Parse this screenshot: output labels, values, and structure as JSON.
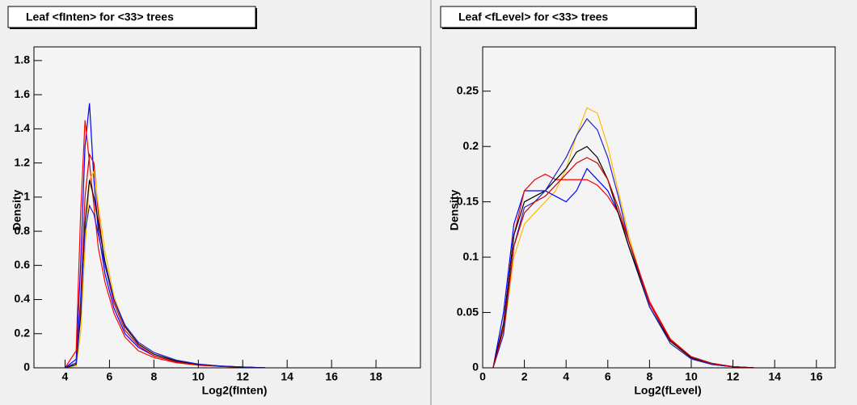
{
  "chart_data": [
    {
      "type": "line",
      "title": "Leaf <fInten> for <33> trees",
      "x_label": "Log2(fInten)",
      "y_label": "Density",
      "xlim": [
        2.6,
        20
      ],
      "ylim": [
        0,
        1.88
      ],
      "xticks": [
        4,
        6,
        8,
        10,
        12,
        14,
        16,
        18
      ],
      "yticks": [
        0,
        0.2,
        0.4,
        0.6,
        0.8,
        1,
        1.2,
        1.4,
        1.6,
        1.8
      ],
      "x": [
        4,
        4.5,
        4.7,
        4.9,
        5.1,
        5.3,
        5.5,
        5.8,
        6.2,
        6.7,
        7.3,
        8,
        9,
        10,
        11,
        12,
        13
      ],
      "series": [
        {
          "color": "#0000ff",
          "values": [
            0,
            0.05,
            0.6,
            1.3,
            1.55,
            1.1,
            0.8,
            0.55,
            0.35,
            0.2,
            0.12,
            0.07,
            0.035,
            0.018,
            0.01,
            0.005,
            0
          ]
        },
        {
          "color": "#ff0000",
          "values": [
            0,
            0.1,
            0.9,
            1.45,
            1.2,
            0.95,
            0.7,
            0.5,
            0.32,
            0.18,
            0.1,
            0.06,
            0.03,
            0.015,
            0.008,
            0.004,
            0
          ]
        },
        {
          "color": "#dd0000",
          "values": [
            0,
            0.02,
            0.4,
            1.0,
            1.25,
            1.2,
            0.9,
            0.6,
            0.38,
            0.22,
            0.13,
            0.07,
            0.035,
            0.018,
            0.009,
            0.004,
            0
          ]
        },
        {
          "color": "#ffbb00",
          "values": [
            0,
            0.01,
            0.2,
            0.7,
            1.1,
            1.15,
            0.95,
            0.68,
            0.42,
            0.24,
            0.14,
            0.08,
            0.04,
            0.02,
            0.01,
            0.005,
            0
          ]
        },
        {
          "color": "#000000",
          "values": [
            0,
            0.02,
            0.3,
            0.85,
            1.1,
            1.0,
            0.85,
            0.62,
            0.4,
            0.24,
            0.14,
            0.08,
            0.04,
            0.02,
            0.01,
            0.004,
            0
          ]
        },
        {
          "color": "#2222cc",
          "values": [
            0,
            0.03,
            0.35,
            0.8,
            0.95,
            0.9,
            0.78,
            0.6,
            0.4,
            0.25,
            0.15,
            0.09,
            0.045,
            0.022,
            0.011,
            0.005,
            0
          ]
        }
      ]
    },
    {
      "type": "line",
      "title": "Leaf <fLevel> for <33> trees",
      "x_label": "Log2(fLevel)",
      "y_label": "Density",
      "xlim": [
        0,
        16.9
      ],
      "ylim": [
        0,
        0.29
      ],
      "xticks": [
        0,
        2,
        4,
        6,
        8,
        10,
        12,
        14,
        16
      ],
      "yticks": [
        0,
        0.05,
        0.1,
        0.15,
        0.2,
        0.25
      ],
      "x": [
        0.5,
        1,
        1.5,
        2,
        2.5,
        3,
        3.5,
        4,
        4.5,
        5,
        5.5,
        6,
        6.5,
        7,
        8,
        9,
        10,
        11,
        12,
        13
      ],
      "series": [
        {
          "color": "#ffbb00",
          "values": [
            0,
            0.03,
            0.1,
            0.13,
            0.14,
            0.15,
            0.16,
            0.18,
            0.21,
            0.235,
            0.23,
            0.2,
            0.16,
            0.12,
            0.055,
            0.022,
            0.008,
            0.003,
            0.001,
            0
          ]
        },
        {
          "color": "#0000ff",
          "values": [
            0,
            0.05,
            0.13,
            0.16,
            0.16,
            0.16,
            0.155,
            0.15,
            0.16,
            0.18,
            0.17,
            0.16,
            0.14,
            0.11,
            0.058,
            0.025,
            0.01,
            0.004,
            0.001,
            0
          ]
        },
        {
          "color": "#ff0000",
          "values": [
            0,
            0.04,
            0.12,
            0.16,
            0.17,
            0.175,
            0.17,
            0.17,
            0.17,
            0.17,
            0.165,
            0.155,
            0.14,
            0.115,
            0.06,
            0.026,
            0.01,
            0.004,
            0.001,
            0
          ]
        },
        {
          "color": "#000000",
          "values": [
            0,
            0.04,
            0.12,
            0.15,
            0.155,
            0.16,
            0.17,
            0.18,
            0.195,
            0.2,
            0.19,
            0.17,
            0.14,
            0.11,
            0.055,
            0.024,
            0.009,
            0.003,
            0.001,
            0
          ]
        },
        {
          "color": "#2222cc",
          "values": [
            0,
            0.03,
            0.11,
            0.145,
            0.15,
            0.16,
            0.175,
            0.19,
            0.21,
            0.225,
            0.215,
            0.19,
            0.155,
            0.115,
            0.055,
            0.022,
            0.008,
            0.003,
            0.001,
            0
          ]
        },
        {
          "color": "#cc0000",
          "values": [
            0,
            0.035,
            0.11,
            0.14,
            0.15,
            0.155,
            0.165,
            0.175,
            0.185,
            0.19,
            0.185,
            0.17,
            0.145,
            0.115,
            0.058,
            0.025,
            0.01,
            0.004,
            0.001,
            0
          ]
        }
      ]
    }
  ]
}
